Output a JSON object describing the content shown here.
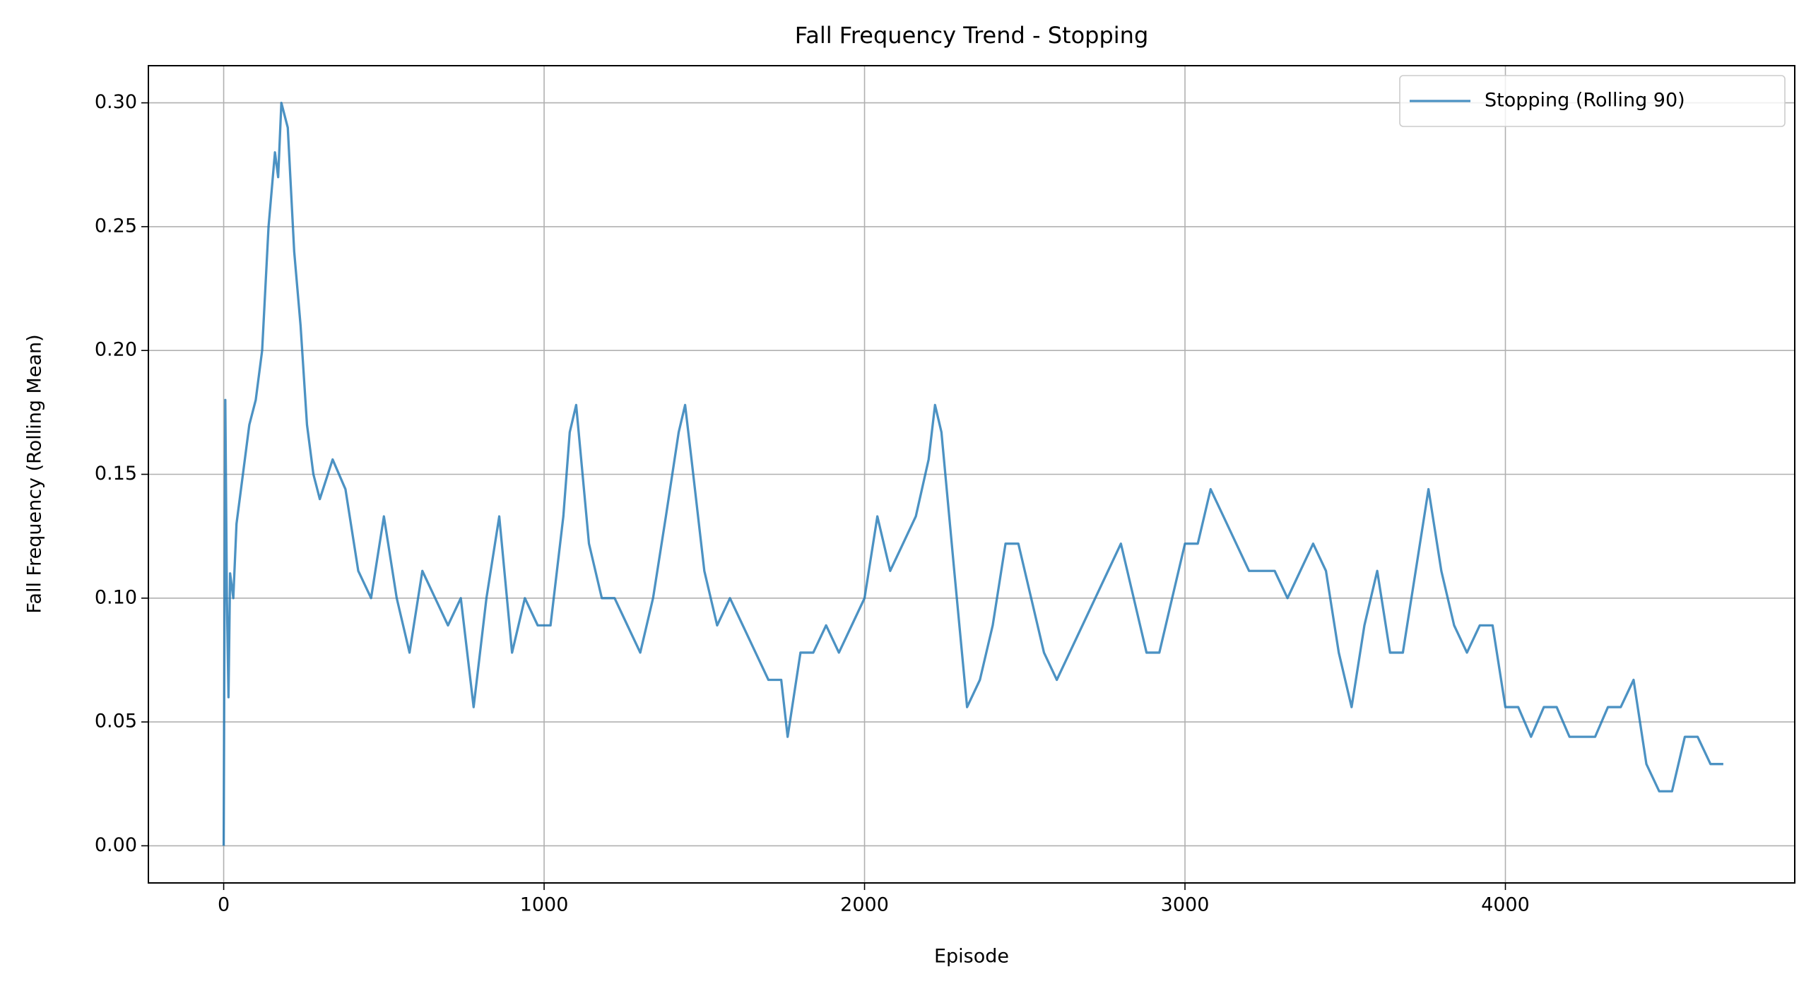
{
  "chart_data": {
    "type": "line",
    "title": "Fall Frequency Trend - Stopping",
    "x_label": "Episode",
    "y_label": "Fall Frequency (Rolling Mean)",
    "x": [
      0,
      5,
      10,
      15,
      20,
      30,
      40,
      60,
      80,
      100,
      120,
      140,
      160,
      170,
      180,
      200,
      220,
      240,
      260,
      280,
      300,
      340,
      380,
      420,
      460,
      500,
      540,
      580,
      620,
      660,
      700,
      740,
      780,
      820,
      860,
      900,
      940,
      980,
      1020,
      1060,
      1080,
      1100,
      1140,
      1180,
      1220,
      1260,
      1300,
      1340,
      1380,
      1420,
      1440,
      1460,
      1500,
      1540,
      1580,
      1620,
      1660,
      1700,
      1740,
      1760,
      1800,
      1840,
      1880,
      1920,
      1960,
      2000,
      2040,
      2080,
      2120,
      2160,
      2200,
      2220,
      2240,
      2280,
      2320,
      2360,
      2400,
      2440,
      2480,
      2520,
      2560,
      2600,
      2640,
      2680,
      2720,
      2760,
      2800,
      2840,
      2880,
      2920,
      2960,
      3000,
      3040,
      3080,
      3120,
      3160,
      3200,
      3240,
      3280,
      3320,
      3360,
      3400,
      3440,
      3480,
      3520,
      3560,
      3600,
      3640,
      3680,
      3720,
      3760,
      3800,
      3840,
      3880,
      3920,
      3960,
      4000,
      4040,
      4080,
      4120,
      4160,
      4200,
      4240,
      4280,
      4320,
      4360,
      4400,
      4440,
      4480,
      4520,
      4560,
      4600,
      4640,
      4680
    ],
    "series": [
      {
        "name": "Stopping (Rolling 90)",
        "color": "#1f77b4",
        "values": [
          0,
          0.18,
          0.1,
          0.06,
          0.11,
          0.1,
          0.13,
          0.15,
          0.17,
          0.18,
          0.2,
          0.25,
          0.28,
          0.27,
          0.3,
          0.29,
          0.24,
          0.21,
          0.17,
          0.15,
          0.14,
          0.156,
          0.144,
          0.111,
          0.1,
          0.133,
          0.1,
          0.078,
          0.111,
          0.1,
          0.089,
          0.1,
          0.056,
          0.1,
          0.133,
          0.078,
          0.1,
          0.089,
          0.089,
          0.133,
          0.167,
          0.178,
          0.122,
          0.1,
          0.1,
          0.089,
          0.078,
          0.1,
          0.133,
          0.167,
          0.178,
          0.156,
          0.111,
          0.089,
          0.1,
          0.089,
          0.078,
          0.067,
          0.067,
          0.044,
          0.078,
          0.078,
          0.089,
          0.078,
          0.089,
          0.1,
          0.133,
          0.111,
          0.122,
          0.133,
          0.156,
          0.178,
          0.167,
          0.111,
          0.056,
          0.067,
          0.089,
          0.122,
          0.122,
          0.1,
          0.078,
          0.067,
          0.078,
          0.089,
          0.1,
          0.111,
          0.122,
          0.1,
          0.078,
          0.078,
          0.1,
          0.122,
          0.122,
          0.144,
          0.133,
          0.122,
          0.111,
          0.111,
          0.111,
          0.1,
          0.111,
          0.122,
          0.111,
          0.078,
          0.056,
          0.089,
          0.111,
          0.078,
          0.078,
          0.111,
          0.144,
          0.111,
          0.089,
          0.078,
          0.089,
          0.089,
          0.056,
          0.056,
          0.044,
          0.056,
          0.056,
          0.044,
          0.044,
          0.044,
          0.056,
          0.056,
          0.067,
          0.033,
          0.022,
          0.022,
          0.044,
          0.044,
          0.033,
          0.033
        ]
      }
    ],
    "xlim": [
      -235,
      4903
    ],
    "ylim": [
      -0.015,
      0.315
    ],
    "xticks": [
      0,
      1000,
      2000,
      3000,
      4000
    ],
    "yticks": [
      {
        "value": 0,
        "label": "0.00"
      },
      {
        "value": 0.05,
        "label": "0.05"
      },
      {
        "value": 0.1,
        "label": "0.10"
      },
      {
        "value": 0.15,
        "label": "0.15"
      },
      {
        "value": 0.2,
        "label": "0.20"
      },
      {
        "value": 0.25,
        "label": "0.25"
      },
      {
        "value": 0.3,
        "label": "0.30"
      }
    ],
    "grid": true,
    "legend": "upper right"
  }
}
